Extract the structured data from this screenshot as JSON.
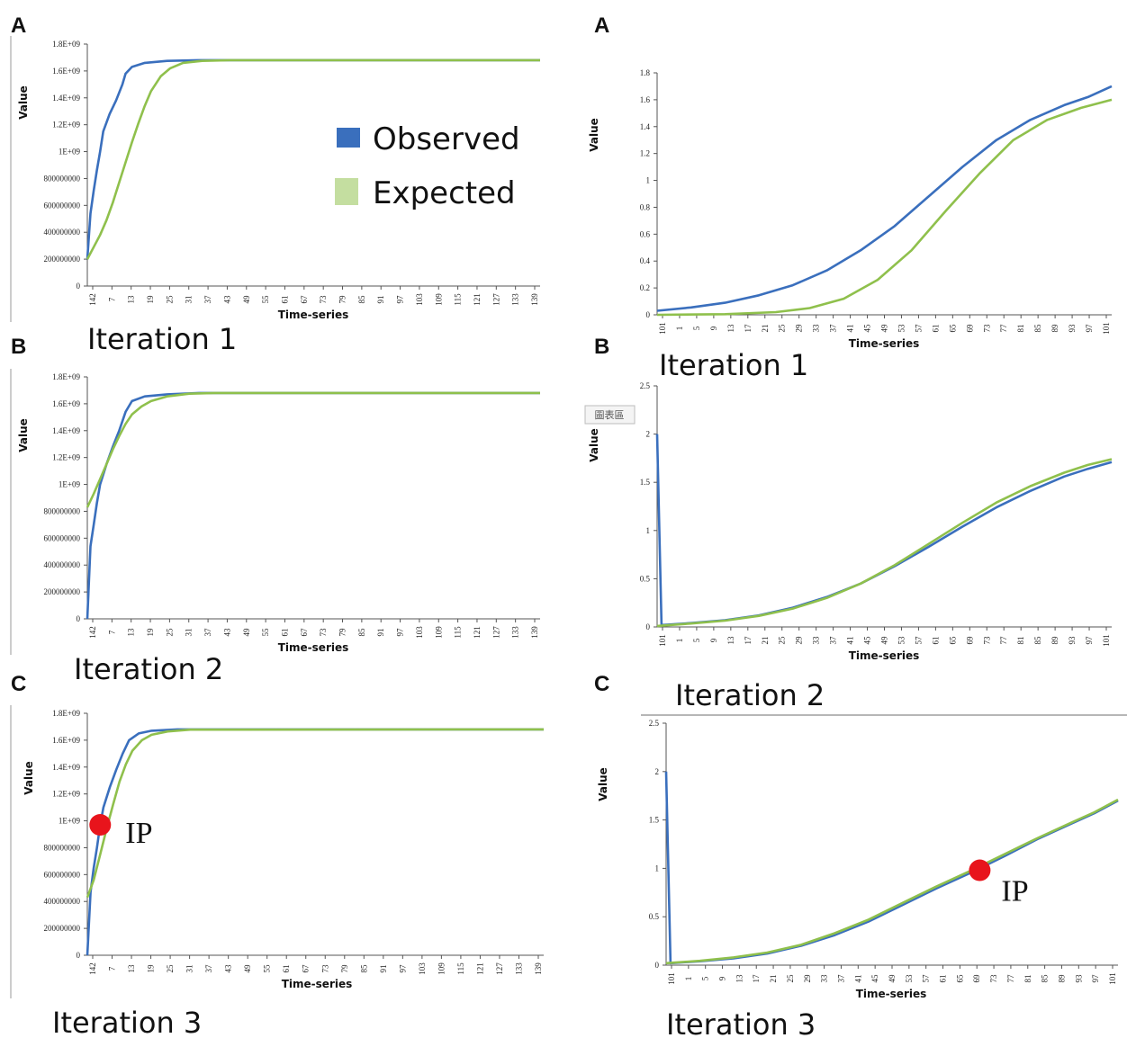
{
  "colors": {
    "observed": "#3a6fbd",
    "expected": "#8fc04c",
    "ip": "#e8141c"
  },
  "legend": {
    "observed": "Observed",
    "expected": "Expected"
  },
  "ip_label": "IP",
  "chart_tag": "圖表區",
  "chart_data": [
    {
      "id": "left-a",
      "type": "line",
      "panel_label": "A",
      "caption": "Iteration 1",
      "xlabel": "Time-series",
      "ylabel": "Value",
      "ylim": [
        0,
        1800000000
      ],
      "yticks": [
        "0",
        "200000000",
        "400000000",
        "600000000",
        "800000000",
        "1E+09",
        "1.2E+09",
        "1.4E+09",
        "1.6E+09",
        "1.8E+09"
      ],
      "xticks": [
        "142",
        "7",
        "13",
        "19",
        "25",
        "31",
        "37",
        "43",
        "49",
        "55",
        "61",
        "67",
        "73",
        "79",
        "85",
        "91",
        "97",
        "103",
        "109",
        "115",
        "121",
        "127",
        "133",
        "139"
      ],
      "show_legend": true,
      "series": [
        {
          "name": "Observed",
          "points": [
            [
              0,
              200000000
            ],
            [
              1,
              540000000
            ],
            [
              2,
              710000000
            ],
            [
              3,
              860000000
            ],
            [
              4,
              1000000000
            ],
            [
              5,
              1150000000
            ],
            [
              7,
              1280000000
            ],
            [
              9,
              1380000000
            ],
            [
              11,
              1500000000
            ],
            [
              12,
              1580000000
            ],
            [
              14,
              1630000000
            ],
            [
              18,
              1660000000
            ],
            [
              25,
              1675000000
            ],
            [
              35,
              1680000000
            ],
            [
              142,
              1680000000
            ]
          ]
        },
        {
          "name": "Expected",
          "points": [
            [
              0,
              200000000
            ],
            [
              2,
              290000000
            ],
            [
              4,
              380000000
            ],
            [
              6,
              490000000
            ],
            [
              8,
              620000000
            ],
            [
              10,
              770000000
            ],
            [
              12,
              920000000
            ],
            [
              14,
              1070000000
            ],
            [
              16,
              1210000000
            ],
            [
              18,
              1340000000
            ],
            [
              20,
              1450000000
            ],
            [
              23,
              1560000000
            ],
            [
              26,
              1620000000
            ],
            [
              30,
              1660000000
            ],
            [
              36,
              1675000000
            ],
            [
              45,
              1680000000
            ],
            [
              142,
              1680000000
            ]
          ]
        }
      ]
    },
    {
      "id": "left-b",
      "type": "line",
      "panel_label": "B",
      "caption": "Iteration 2",
      "xlabel": "Time-series",
      "ylabel": "Value",
      "ylim": [
        0,
        1800000000
      ],
      "yticks": [
        "0",
        "200000000",
        "400000000",
        "600000000",
        "800000000",
        "1E+09",
        "1.2E+09",
        "1.4E+09",
        "1.6E+09",
        "1.8E+09"
      ],
      "xticks": [
        "142",
        "7",
        "13",
        "19",
        "25",
        "31",
        "37",
        "43",
        "49",
        "55",
        "61",
        "67",
        "73",
        "79",
        "85",
        "91",
        "97",
        "103",
        "109",
        "115",
        "121",
        "127",
        "133",
        "139"
      ],
      "series": [
        {
          "name": "Observed",
          "points": [
            [
              0,
              0
            ],
            [
              1,
              540000000
            ],
            [
              2,
              700000000
            ],
            [
              3,
              860000000
            ],
            [
              4,
              1000000000
            ],
            [
              6,
              1150000000
            ],
            [
              8,
              1280000000
            ],
            [
              10,
              1400000000
            ],
            [
              12,
              1540000000
            ],
            [
              14,
              1620000000
            ],
            [
              18,
              1655000000
            ],
            [
              25,
              1670000000
            ],
            [
              35,
              1680000000
            ],
            [
              142,
              1680000000
            ]
          ]
        },
        {
          "name": "Expected",
          "points": [
            [
              0,
              830000000
            ],
            [
              2,
              930000000
            ],
            [
              4,
              1040000000
            ],
            [
              6,
              1150000000
            ],
            [
              8,
              1260000000
            ],
            [
              10,
              1360000000
            ],
            [
              12,
              1450000000
            ],
            [
              14,
              1520000000
            ],
            [
              17,
              1580000000
            ],
            [
              20,
              1620000000
            ],
            [
              25,
              1655000000
            ],
            [
              32,
              1675000000
            ],
            [
              40,
              1680000000
            ],
            [
              142,
              1680000000
            ]
          ]
        }
      ]
    },
    {
      "id": "left-c",
      "type": "line",
      "panel_label": "C",
      "caption": "Iteration 3",
      "xlabel": "Time-series",
      "ylabel": "Value",
      "ylim": [
        0,
        1800000000
      ],
      "yticks": [
        "0",
        "200000000",
        "400000000",
        "600000000",
        "800000000",
        "1E+09",
        "1.2E+09",
        "1.4E+09",
        "1.6E+09",
        "1.8E+09"
      ],
      "xticks": [
        "142",
        "7",
        "13",
        "19",
        "25",
        "31",
        "37",
        "43",
        "49",
        "55",
        "61",
        "67",
        "73",
        "79",
        "85",
        "91",
        "97",
        "103",
        "109",
        "115",
        "121",
        "127",
        "133",
        "139"
      ],
      "ip": [
        4,
        970000000
      ],
      "series": [
        {
          "name": "Observed",
          "points": [
            [
              0,
              0
            ],
            [
              1,
              470000000
            ],
            [
              2,
              650000000
            ],
            [
              3,
              800000000
            ],
            [
              4,
              970000000
            ],
            [
              5,
              1100000000
            ],
            [
              7,
              1250000000
            ],
            [
              9,
              1380000000
            ],
            [
              11,
              1500000000
            ],
            [
              13,
              1600000000
            ],
            [
              16,
              1650000000
            ],
            [
              20,
              1670000000
            ],
            [
              28,
              1680000000
            ],
            [
              142,
              1680000000
            ]
          ]
        },
        {
          "name": "Expected",
          "points": [
            [
              0,
              430000000
            ],
            [
              2,
              560000000
            ],
            [
              4,
              750000000
            ],
            [
              6,
              940000000
            ],
            [
              8,
              1120000000
            ],
            [
              10,
              1290000000
            ],
            [
              12,
              1420000000
            ],
            [
              14,
              1520000000
            ],
            [
              17,
              1600000000
            ],
            [
              20,
              1640000000
            ],
            [
              25,
              1665000000
            ],
            [
              32,
              1678000000
            ],
            [
              142,
              1680000000
            ]
          ]
        }
      ]
    },
    {
      "id": "right-a",
      "type": "line",
      "panel_label": "A",
      "caption": "Iteration 1",
      "xlabel": "Time-series",
      "ylabel": "Value",
      "ylim": [
        0,
        1.8
      ],
      "yticks": [
        "0",
        "0.2",
        "0.4",
        "0.6",
        "0.8",
        "1",
        "1.2",
        "1.4",
        "1.6",
        "1.8"
      ],
      "xticks": [
        "101",
        "1",
        "5",
        "9",
        "13",
        "17",
        "21",
        "25",
        "29",
        "33",
        "37",
        "41",
        "45",
        "49",
        "53",
        "57",
        "61",
        "65",
        "69",
        "73",
        "77",
        "81",
        "85",
        "89",
        "93",
        "97",
        "101"
      ],
      "series": [
        {
          "name": "Observed",
          "points": [
            [
              0,
              0.03
            ],
            [
              10,
              0.055
            ],
            [
              20,
              0.09
            ],
            [
              30,
              0.145
            ],
            [
              40,
              0.22
            ],
            [
              50,
              0.33
            ],
            [
              60,
              0.48
            ],
            [
              70,
              0.66
            ],
            [
              80,
              0.88
            ],
            [
              90,
              1.1
            ],
            [
              100,
              1.3
            ],
            [
              110,
              1.45
            ],
            [
              120,
              1.56
            ],
            [
              127,
              1.62
            ],
            [
              134,
              1.7
            ]
          ]
        },
        {
          "name": "Expected",
          "points": [
            [
              0,
              0
            ],
            [
              20,
              0.005
            ],
            [
              35,
              0.02
            ],
            [
              45,
              0.05
            ],
            [
              55,
              0.12
            ],
            [
              65,
              0.26
            ],
            [
              75,
              0.48
            ],
            [
              85,
              0.77
            ],
            [
              95,
              1.05
            ],
            [
              105,
              1.3
            ],
            [
              115,
              1.45
            ],
            [
              125,
              1.54
            ],
            [
              134,
              1.6
            ]
          ]
        }
      ]
    },
    {
      "id": "right-b",
      "type": "line",
      "panel_label": "B",
      "caption": "Iteration 2",
      "xlabel": "Time-series",
      "ylabel": "Value",
      "ylim": [
        0,
        2.5
      ],
      "yticks": [
        "0",
        "0.5",
        "1",
        "1.5",
        "2",
        "2.5"
      ],
      "xticks": [
        "101",
        "1",
        "5",
        "9",
        "13",
        "17",
        "21",
        "25",
        "29",
        "33",
        "37",
        "41",
        "45",
        "49",
        "53",
        "57",
        "61",
        "65",
        "69",
        "73",
        "77",
        "81",
        "85",
        "89",
        "93",
        "97",
        "101"
      ],
      "series": [
        {
          "name": "Observed",
          "points": [
            [
              0,
              2.0
            ],
            [
              1.3,
              0.02
            ],
            [
              10,
              0.04
            ],
            [
              20,
              0.07
            ],
            [
              30,
              0.12
            ],
            [
              40,
              0.2
            ],
            [
              50,
              0.31
            ],
            [
              60,
              0.45
            ],
            [
              70,
              0.63
            ],
            [
              80,
              0.83
            ],
            [
              90,
              1.04
            ],
            [
              100,
              1.24
            ],
            [
              110,
              1.41
            ],
            [
              120,
              1.56
            ],
            [
              127,
              1.64
            ],
            [
              134,
              1.71
            ]
          ]
        },
        {
          "name": "Expected",
          "points": [
            [
              0,
              0.01
            ],
            [
              10,
              0.035
            ],
            [
              20,
              0.065
            ],
            [
              30,
              0.115
            ],
            [
              40,
              0.19
            ],
            [
              50,
              0.3
            ],
            [
              60,
              0.45
            ],
            [
              70,
              0.64
            ],
            [
              80,
              0.86
            ],
            [
              90,
              1.08
            ],
            [
              100,
              1.29
            ],
            [
              110,
              1.46
            ],
            [
              120,
              1.6
            ],
            [
              127,
              1.68
            ],
            [
              134,
              1.74
            ]
          ]
        }
      ]
    },
    {
      "id": "right-c",
      "type": "line",
      "panel_label": "C",
      "caption": "Iteration 3",
      "xlabel": "Time-series",
      "ylabel": "Value",
      "ylim": [
        0,
        2.5
      ],
      "yticks": [
        "0",
        "0.5",
        "1",
        "1.5",
        "2",
        "2.5"
      ],
      "xticks": [
        "101",
        "1",
        "5",
        "9",
        "13",
        "17",
        "21",
        "25",
        "29",
        "33",
        "37",
        "41",
        "45",
        "49",
        "53",
        "57",
        "61",
        "65",
        "69",
        "73",
        "77",
        "81",
        "85",
        "89",
        "93",
        "97",
        "101"
      ],
      "ip": [
        93,
        0.98
      ],
      "series": [
        {
          "name": "Observed",
          "points": [
            [
              0,
              2.0
            ],
            [
              1.3,
              0.02
            ],
            [
              10,
              0.04
            ],
            [
              20,
              0.07
            ],
            [
              30,
              0.12
            ],
            [
              40,
              0.2
            ],
            [
              50,
              0.31
            ],
            [
              60,
              0.45
            ],
            [
              70,
              0.62
            ],
            [
              80,
              0.79
            ],
            [
              90,
              0.95
            ],
            [
              100,
              1.12
            ],
            [
              110,
              1.3
            ],
            [
              120,
              1.46
            ],
            [
              127,
              1.57
            ],
            [
              134,
              1.7
            ]
          ]
        },
        {
          "name": "Expected",
          "points": [
            [
              0,
              0.02
            ],
            [
              10,
              0.045
            ],
            [
              20,
              0.08
            ],
            [
              30,
              0.13
            ],
            [
              40,
              0.21
            ],
            [
              50,
              0.33
            ],
            [
              60,
              0.47
            ],
            [
              70,
              0.64
            ],
            [
              80,
              0.81
            ],
            [
              90,
              0.97
            ],
            [
              100,
              1.14
            ],
            [
              110,
              1.31
            ],
            [
              120,
              1.47
            ],
            [
              127,
              1.58
            ],
            [
              134,
              1.71
            ]
          ]
        }
      ]
    }
  ]
}
